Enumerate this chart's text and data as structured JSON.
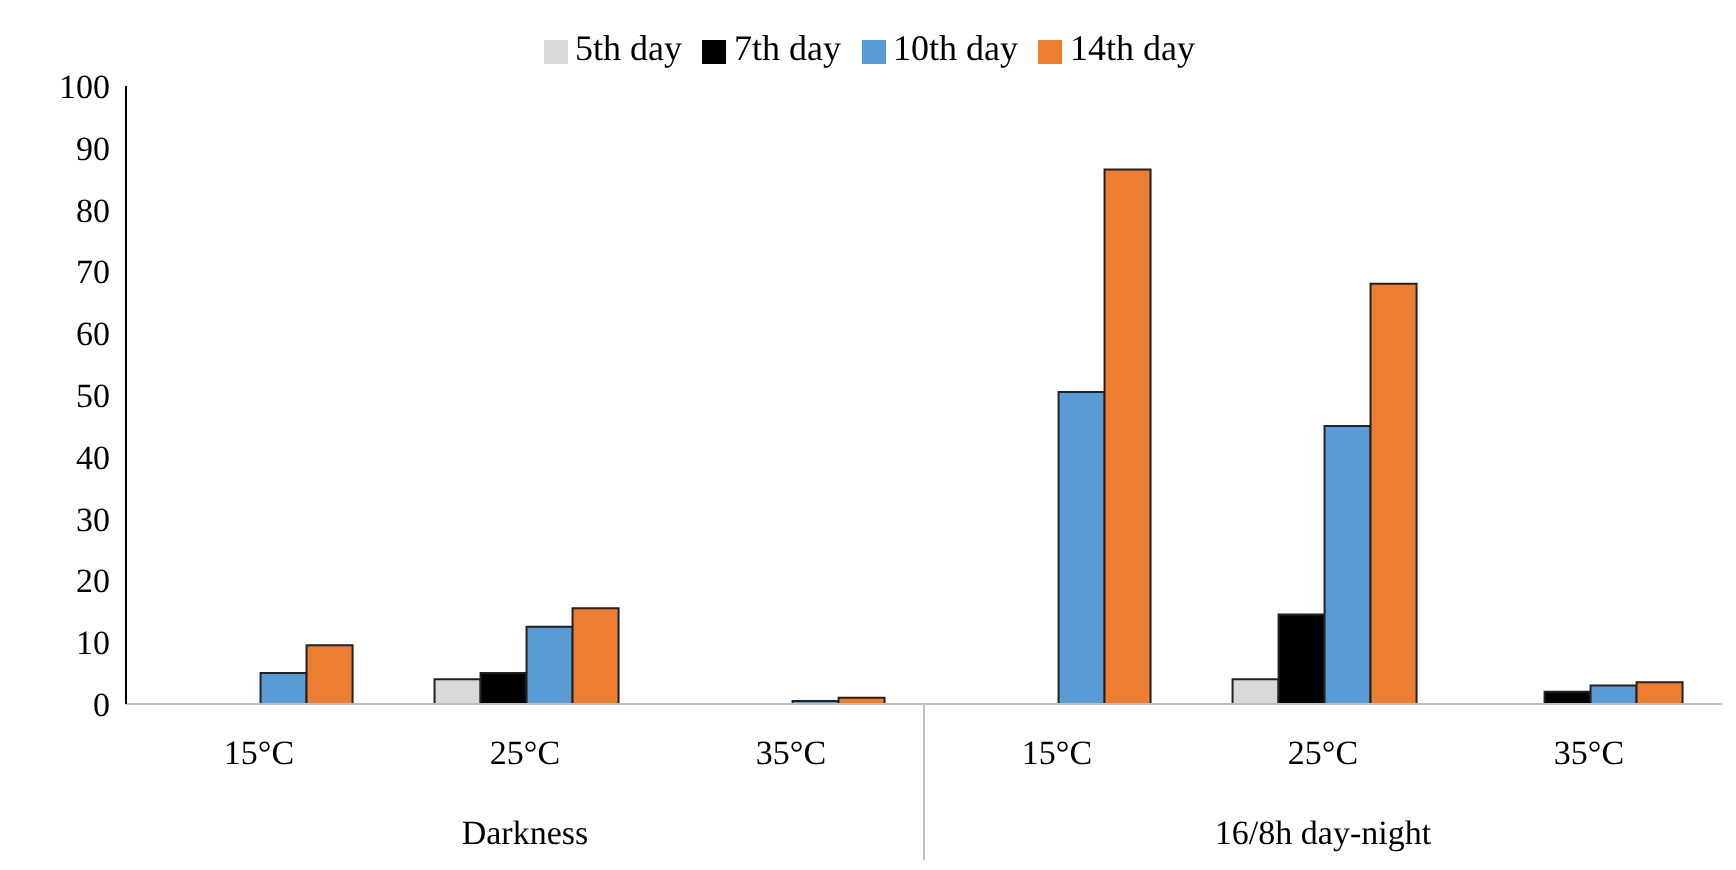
{
  "chart_data": {
    "type": "bar",
    "categories": [
      "15°C",
      "25°C",
      "35°C",
      "15°C",
      "25°C",
      "35°C"
    ],
    "series": [
      {
        "name": "5th day",
        "color": "#d9d9d9",
        "values": [
          0,
          4,
          0,
          0,
          4,
          0
        ]
      },
      {
        "name": "7th day",
        "color": "#000000",
        "values": [
          0,
          5,
          0,
          0,
          14.5,
          2
        ]
      },
      {
        "name": "10th day",
        "color": "#5b9bd5",
        "values": [
          5,
          12.5,
          0.5,
          50.5,
          45,
          3
        ]
      },
      {
        "name": "14th day",
        "color": "#ed7d31",
        "values": [
          9.5,
          15.5,
          1,
          86.5,
          68,
          3.5
        ]
      }
    ],
    "annotations": [
      "Darkness",
      "16/8h day-night"
    ],
    "ylim": [
      0,
      100
    ],
    "yticks": [
      0,
      10,
      20,
      30,
      40,
      50,
      60,
      70,
      80,
      90,
      100
    ],
    "legend": "top"
  }
}
